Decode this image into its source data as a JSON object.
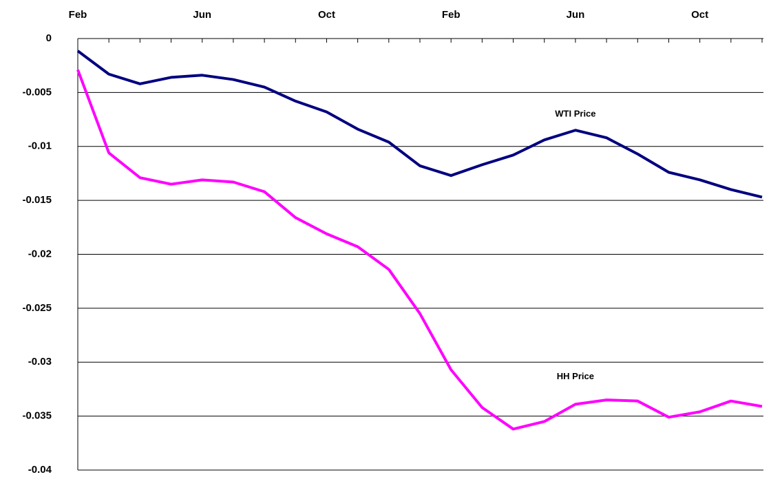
{
  "chart_data": {
    "type": "line",
    "categories": [
      "Feb",
      null,
      null,
      null,
      "Jun",
      null,
      null,
      null,
      "Oct",
      null,
      null,
      null,
      "Feb",
      null,
      null,
      null,
      "Jun",
      null,
      null,
      null,
      "Oct",
      null,
      null
    ],
    "series": [
      {
        "name": "WTI Price",
        "color": "#000080",
        "values": [
          -0.00115,
          -0.0033,
          -0.0042,
          -0.0036,
          -0.0034,
          -0.0038,
          -0.0045,
          -0.0058,
          -0.0068,
          -0.0084,
          -0.0096,
          -0.0118,
          -0.0127,
          -0.0117,
          -0.0108,
          -0.0094,
          -0.0085,
          -0.0092,
          -0.0107,
          -0.0124,
          -0.0131,
          -0.014,
          -0.0147
        ]
      },
      {
        "name": "HH Price",
        "color": "#ff00ff",
        "values": [
          -0.0029,
          -0.0106,
          -0.0129,
          -0.0135,
          -0.0131,
          -0.0133,
          -0.0142,
          -0.0166,
          -0.0181,
          -0.0193,
          -0.0214,
          -0.0255,
          -0.0307,
          -0.0342,
          -0.0362,
          -0.0355,
          -0.0339,
          -0.0335,
          -0.0336,
          -0.0351,
          -0.0346,
          -0.0336,
          -0.0341
        ]
      }
    ],
    "ylim": [
      -0.04,
      0
    ],
    "yticks": [
      0,
      -0.005,
      -0.01,
      -0.015,
      -0.02,
      -0.025,
      -0.03,
      -0.035,
      -0.04
    ],
    "grid": true
  }
}
